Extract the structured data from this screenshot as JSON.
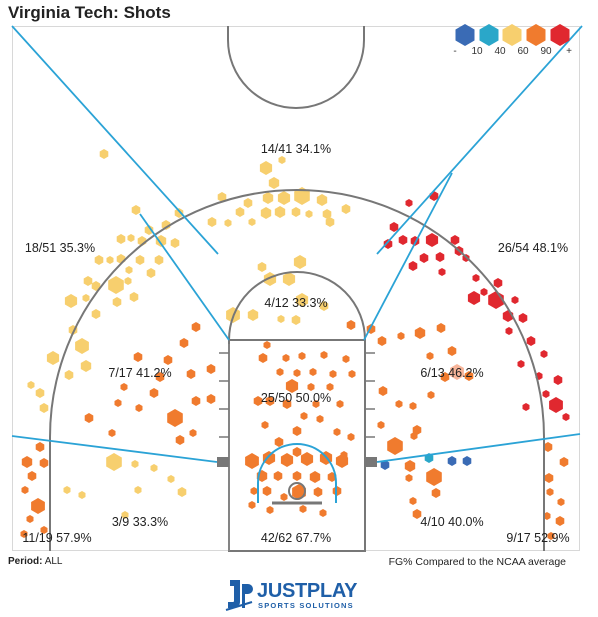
{
  "header": {
    "title": "Virginia Tech: Shots"
  },
  "legend": {
    "tiers": [
      {
        "label": "-",
        "color": "#3a6bb5"
      },
      {
        "label": "10",
        "color": "#2aa7c9"
      },
      {
        "label": "40",
        "color": "#f7cf6e"
      },
      {
        "label": "60",
        "color": "#f07b2e"
      },
      {
        "label": "90",
        "color": "#e0282f"
      },
      {
        "label": "+",
        "color": ""
      }
    ]
  },
  "chart_data": {
    "type": "shot-chart",
    "title": "Virginia Tech: Shots",
    "zones": [
      {
        "id": "left-corner-three",
        "label": "11/19 57.9%",
        "made": 11,
        "attempts": 19,
        "pct": 57.9
      },
      {
        "id": "left-wing-three",
        "label": "18/51 35.3%",
        "made": 18,
        "attempts": 51,
        "pct": 35.3
      },
      {
        "id": "top-three",
        "label": "14/41 34.1%",
        "made": 14,
        "attempts": 41,
        "pct": 34.1
      },
      {
        "id": "right-wing-three",
        "label": "26/54 48.1%",
        "made": 26,
        "attempts": 54,
        "pct": 48.1
      },
      {
        "id": "right-corner-three",
        "label": "9/17 52.9%",
        "made": 9,
        "attempts": 17,
        "pct": 52.9
      },
      {
        "id": "left-baseline-mid",
        "label": "3/9 33.3%",
        "made": 3,
        "attempts": 9,
        "pct": 33.3
      },
      {
        "id": "left-elbow-mid",
        "label": "7/17 41.2%",
        "made": 7,
        "attempts": 17,
        "pct": 41.2
      },
      {
        "id": "top-key-mid",
        "label": "4/12 33.3%",
        "made": 4,
        "attempts": 12,
        "pct": 33.3
      },
      {
        "id": "right-elbow-mid",
        "label": "6/13 46.2%",
        "made": 6,
        "attempts": 13,
        "pct": 46.2
      },
      {
        "id": "right-baseline-mid",
        "label": "4/10 40.0%",
        "made": 4,
        "attempts": 10,
        "pct": 40.0
      },
      {
        "id": "paint",
        "label": "25/50 50.0%",
        "made": 25,
        "attempts": 50,
        "pct": 50.0
      },
      {
        "id": "at-rim",
        "label": "42/62 67.7%",
        "made": 42,
        "attempts": 62,
        "pct": 67.7
      }
    ]
  },
  "footer": {
    "period_label": "Period:",
    "period_value": "ALL",
    "note": "FG% Compared to the NCAA average"
  },
  "logo": {
    "main": "JUSTPLAY",
    "sub": "SPORTS SOLUTIONS"
  }
}
